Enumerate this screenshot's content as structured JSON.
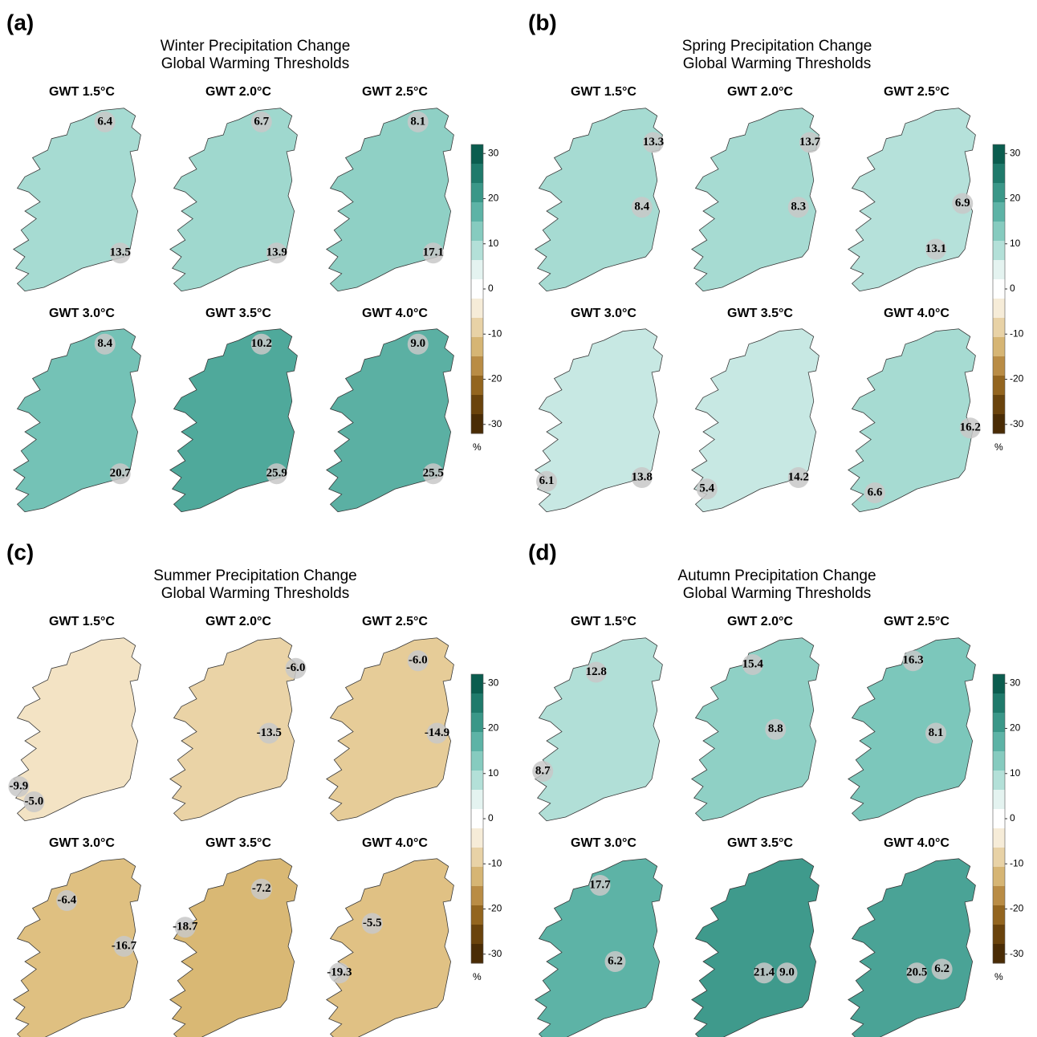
{
  "panels": [
    {
      "label": "(a)",
      "title": [
        "Winter Precipitation Change",
        "Global Warming Thresholds"
      ],
      "maps": [
        {
          "title": "GWT 1.5°C",
          "color": "#a6dbd2",
          "annotations": [
            "6.4",
            "13.5"
          ]
        },
        {
          "title": "GWT 2.0°C",
          "color": "#9fd8ce",
          "annotations": [
            "6.7",
            "13.9"
          ]
        },
        {
          "title": "GWT 2.5°C",
          "color": "#8fd0c5",
          "annotations": [
            "8.1",
            "17.1"
          ]
        },
        {
          "title": "GWT 3.0°C",
          "color": "#74c2b6",
          "annotations": [
            "8.4",
            "20.7"
          ]
        },
        {
          "title": "GWT 3.5°C",
          "color": "#4fa99b",
          "annotations": [
            "10.2",
            "25.9"
          ]
        },
        {
          "title": "GWT 4.0°C",
          "color": "#5bb0a3",
          "annotations": [
            "9.0",
            "25.5"
          ]
        }
      ],
      "colorbar": {
        "ticks": [
          30,
          20,
          10,
          0,
          -10,
          -20,
          -30
        ],
        "unit": "%"
      }
    },
    {
      "label": "(b)",
      "title": [
        "Spring Precipitation Change",
        "Global Warming Thresholds"
      ],
      "maps": [
        {
          "title": "GWT 1.5°C",
          "color": "#a6dbd2",
          "annotations": [
            "13.3",
            "8.4"
          ]
        },
        {
          "title": "GWT 2.0°C",
          "color": "#a6dbd2",
          "annotations": [
            "13.7",
            "8.3"
          ]
        },
        {
          "title": "GWT 2.5°C",
          "color": "#b5e1da",
          "annotations": [
            "6.9",
            "13.1"
          ]
        },
        {
          "title": "GWT 3.0°C",
          "color": "#c7e8e3",
          "annotations": [
            "6.1",
            "13.8"
          ]
        },
        {
          "title": "GWT 3.5°C",
          "color": "#c7e8e3",
          "annotations": [
            "5.4",
            "14.2"
          ]
        },
        {
          "title": "GWT 4.0°C",
          "color": "#a6dbd2",
          "annotations": [
            "16.2",
            "6.6"
          ]
        }
      ],
      "colorbar": {
        "ticks": [
          30,
          20,
          10,
          0,
          -10,
          -20,
          -30
        ],
        "unit": "%"
      }
    },
    {
      "label": "(c)",
      "title": [
        "Summer Precipitation Change",
        "Global Warming Thresholds"
      ],
      "maps": [
        {
          "title": "GWT 1.5°C",
          "color": "#f3e3c4",
          "annotations": [
            "-9.9",
            "-5.0"
          ]
        },
        {
          "title": "GWT 2.0°C",
          "color": "#ead3a6",
          "annotations": [
            "-6.0",
            "-13.5"
          ]
        },
        {
          "title": "GWT 2.5°C",
          "color": "#e6cc98",
          "annotations": [
            "-6.0",
            "-14.9"
          ]
        },
        {
          "title": "GWT 3.0°C",
          "color": "#dfc081",
          "annotations": [
            "-6.4",
            "-16.7"
          ]
        },
        {
          "title": "GWT 3.5°C",
          "color": "#d9b874",
          "annotations": [
            "-7.2",
            "-18.7"
          ]
        },
        {
          "title": "GWT 4.0°C",
          "color": "#e0c184",
          "annotations": [
            "-5.5",
            "-19.3"
          ]
        }
      ],
      "colorbar": {
        "ticks": [
          30,
          20,
          10,
          0,
          -10,
          -20,
          -30
        ],
        "unit": "%"
      }
    },
    {
      "label": "(d)",
      "title": [
        "Autumn Precipitation Change",
        "Global Warming Thresholds"
      ],
      "maps": [
        {
          "title": "GWT 1.5°C",
          "color": "#b1dfd7",
          "annotations": [
            "12.8",
            "8.7"
          ]
        },
        {
          "title": "GWT 2.0°C",
          "color": "#8fd0c5",
          "annotations": [
            "15.4",
            "8.8"
          ]
        },
        {
          "title": "GWT 2.5°C",
          "color": "#7cc7bb",
          "annotations": [
            "16.3",
            "8.1"
          ]
        },
        {
          "title": "GWT 3.0°C",
          "color": "#5db3a6",
          "annotations": [
            "17.7",
            "6.2"
          ]
        },
        {
          "title": "GWT 3.5°C",
          "color": "#3f9a8c",
          "annotations": [
            "21.4",
            "9.0"
          ]
        },
        {
          "title": "GWT 4.0°C",
          "color": "#4aa396",
          "annotations": [
            "20.5",
            "6.2"
          ]
        }
      ],
      "colorbar": {
        "ticks": [
          30,
          20,
          10,
          0,
          -10,
          -20,
          -30
        ],
        "unit": "%"
      }
    }
  ],
  "colorbar_lim": [
    32,
    -32
  ],
  "colorbar_colors": [
    "#0b5d4f",
    "#1f7a6b",
    "#3a9788",
    "#5db3a6",
    "#86cbbf",
    "#b3e0d8",
    "#e4f3f0",
    "#ffffff",
    "#f6ecd8",
    "#e8d2a6",
    "#d6b574",
    "#b98c45",
    "#93651f",
    "#6a430c",
    "#4a2c05"
  ]
}
